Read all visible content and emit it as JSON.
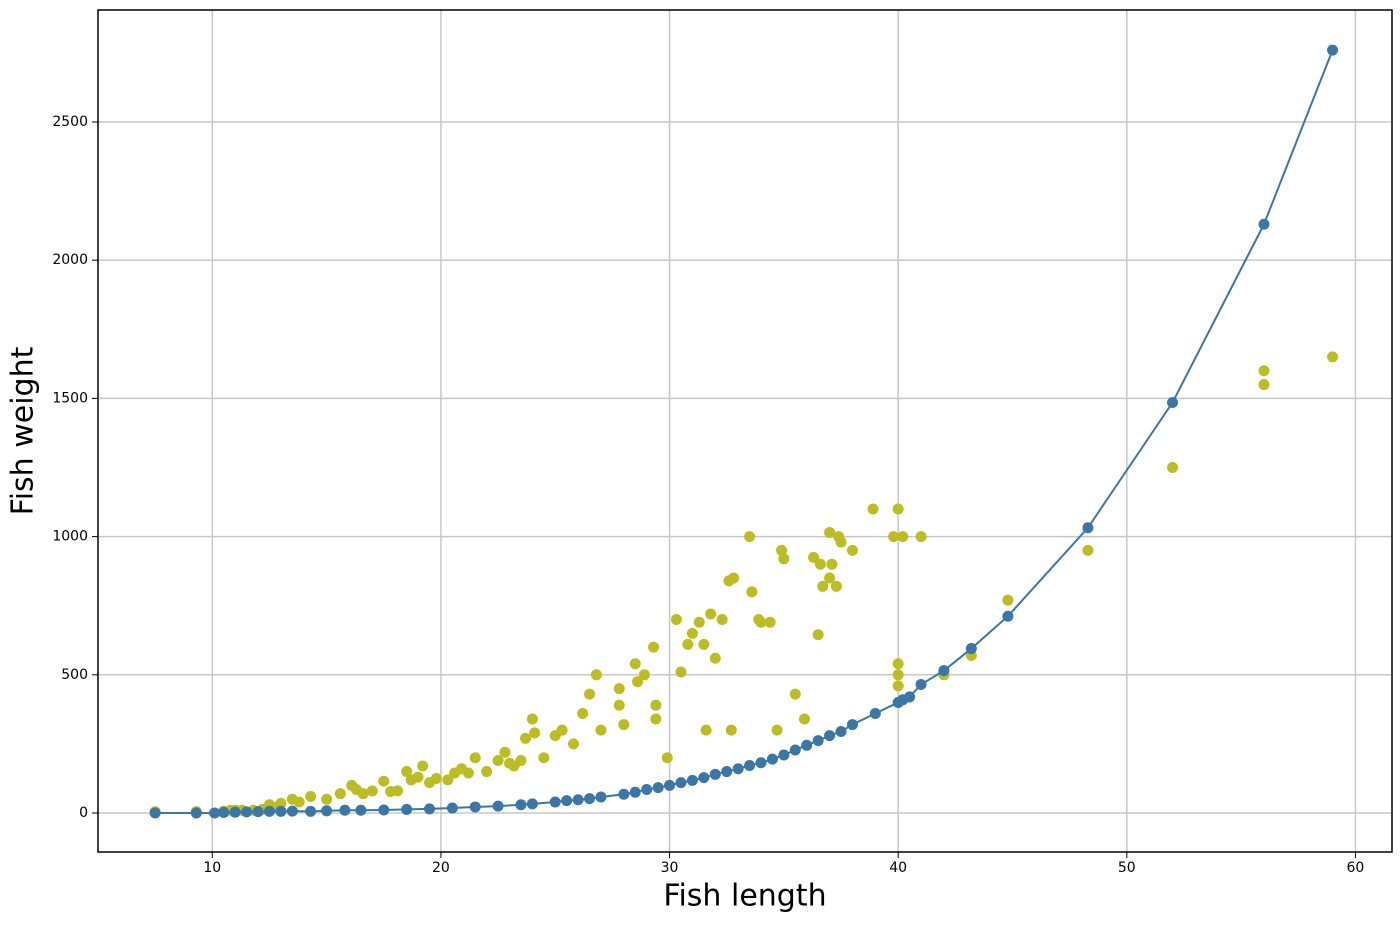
{
  "chart_data": {
    "type": "scatter",
    "xlabel": "Fish length",
    "ylabel": "Fish weight",
    "xlim": [
      5,
      61.6
    ],
    "ylim": [
      -141,
      2905
    ],
    "xticks": [
      10,
      20,
      30,
      40,
      50,
      60
    ],
    "yticks": [
      0,
      500,
      1000,
      1500,
      2000,
      2500
    ],
    "grid": true,
    "series": [
      {
        "type": "scatter",
        "color": "#bcbd22",
        "x": [
          7.5,
          9.3,
          10.5,
          10.8,
          11,
          11.3,
          11.8,
          12.2,
          12.5,
          12.8,
          13,
          13.5,
          13.8,
          14.3,
          15,
          15.6,
          16.1,
          16.3,
          16.6,
          17,
          17.5,
          17.8,
          18.1,
          18.5,
          18.7,
          19,
          19.2,
          19.5,
          19.8,
          20.3,
          20.6,
          20.9,
          21.2,
          21.5,
          22,
          22.5,
          22.8,
          23,
          23.2,
          23.5,
          23.7,
          24,
          24.1,
          24.5,
          25,
          25.3,
          25.8,
          26.2,
          26.5,
          26.8,
          27,
          27.8,
          27.8,
          28,
          28.5,
          28.6,
          28.9,
          29.3,
          29.4,
          29.4,
          29.9,
          30.3,
          30.5,
          30.8,
          31,
          31.3,
          31.5,
          31.6,
          31.8,
          32,
          32.3,
          32.6,
          32.8,
          32.7,
          33.5,
          33.6,
          33.9,
          34,
          34.4,
          34.7,
          34.9,
          35,
          35.5,
          35.9,
          36.3,
          36.5,
          36.6,
          36.7,
          37,
          37,
          37.1,
          37.3,
          37.4,
          37.5,
          38,
          38.9,
          39.8,
          40,
          40,
          40,
          40,
          40.2,
          41,
          42,
          43.2,
          44.8,
          48.3,
          52,
          56,
          56,
          59
        ],
        "values": [
          5,
          5,
          7,
          10,
          10,
          10,
          10,
          13,
          30,
          20,
          35,
          50,
          40,
          60,
          50,
          70,
          100,
          85,
          70,
          80,
          115,
          78,
          80,
          150,
          120,
          130,
          170,
          110,
          125,
          120,
          145,
          160,
          145,
          200,
          150,
          190,
          220,
          180,
          170,
          190,
          270,
          340,
          290,
          200,
          280,
          300,
          250,
          360,
          430,
          500,
          300,
          450,
          390,
          320,
          540,
          475,
          500,
          600,
          390,
          340,
          200,
          700,
          510,
          610,
          650,
          690,
          610,
          300,
          720,
          560,
          700,
          840,
          850,
          300,
          1000,
          800,
          700,
          690,
          690,
          300,
          950,
          920,
          430,
          340,
          925,
          645,
          900,
          820,
          850,
          1015,
          900,
          820,
          1000,
          980,
          950,
          1100,
          1000,
          1100,
          540,
          500,
          460,
          1000,
          1000,
          500,
          570,
          770,
          950,
          1250,
          1600,
          1550,
          1650
        ]
      },
      {
        "type": "line",
        "color": "#3a76a6",
        "x": [
          7.5,
          9.3,
          10.1,
          10.5,
          11,
          11.5,
          12,
          12.5,
          13,
          13.5,
          14.3,
          15,
          15.8,
          16.5,
          17.5,
          18.5,
          19.5,
          20.5,
          21.5,
          22.5,
          23.5,
          24,
          25,
          25.5,
          26,
          26.5,
          27,
          28,
          28.5,
          29,
          29.5,
          30,
          30.5,
          31,
          31.5,
          32,
          32.5,
          33,
          33.5,
          34,
          34.5,
          35,
          35.5,
          36,
          36.5,
          37,
          37.5,
          38,
          39,
          40,
          40.2,
          40.5,
          41,
          42,
          43.2,
          44.8,
          48.3,
          52,
          56,
          59
        ],
        "values": [
          0,
          0,
          0,
          2,
          3,
          4,
          5,
          6,
          6,
          7,
          6,
          8,
          10,
          10,
          11,
          13,
          15,
          18,
          22,
          25,
          30,
          33,
          40,
          45,
          48,
          52,
          58,
          68,
          75,
          85,
          92,
          100,
          110,
          118,
          128,
          140,
          150,
          160,
          172,
          182,
          195,
          210,
          228,
          245,
          262,
          280,
          295,
          320,
          360,
          400,
          410,
          420,
          465,
          515,
          595,
          712,
          1032,
          1485,
          2130,
          2760
        ]
      }
    ]
  }
}
